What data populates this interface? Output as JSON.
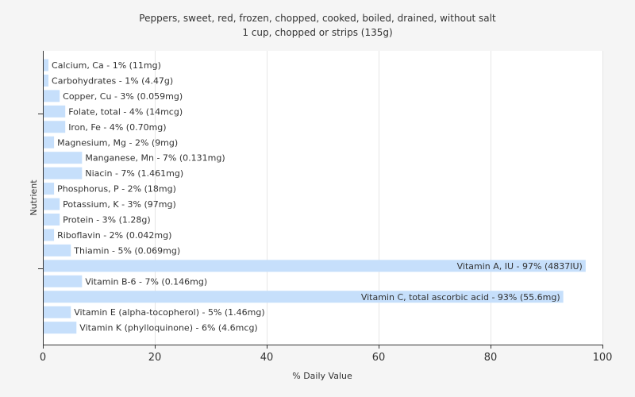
{
  "chart_data": {
    "type": "bar",
    "orientation": "horizontal",
    "title": "Peppers, sweet, red, frozen, chopped, cooked, boiled, drained, without salt",
    "subtitle": "1 cup, chopped or strips (135g)",
    "xlabel": "% Daily Value",
    "ylabel": "Nutrient",
    "xlim": [
      0,
      100
    ],
    "xticks": [
      "0",
      "20",
      "40",
      "60",
      "80",
      "100"
    ],
    "grid": true,
    "bar_color": "#c6dffb",
    "categories": [
      "Calcium, Ca - 1% (11mg)",
      "Carbohydrates - 1% (4.47g)",
      "Copper, Cu - 3% (0.059mg)",
      "Folate, total - 4% (14mcg)",
      "Iron, Fe - 4% (0.70mg)",
      "Magnesium, Mg - 2% (9mg)",
      "Manganese, Mn - 7% (0.131mg)",
      "Niacin - 7% (1.461mg)",
      "Phosphorus, P - 2% (18mg)",
      "Potassium, K - 3% (97mg)",
      "Protein - 3% (1.28g)",
      "Riboflavin - 2% (0.042mg)",
      "Thiamin - 5% (0.069mg)",
      "Vitamin A, IU - 97% (4837IU)",
      "Vitamin B-6 - 7% (0.146mg)",
      "Vitamin C, total ascorbic acid - 93% (55.6mg)",
      "Vitamin E (alpha-tocopherol) - 5% (1.46mg)",
      "Vitamin K (phylloquinone) - 6% (4.6mcg)"
    ],
    "values": [
      1,
      1,
      3,
      4,
      4,
      2,
      7,
      7,
      2,
      3,
      3,
      2,
      5,
      97,
      7,
      93,
      5,
      6
    ]
  }
}
